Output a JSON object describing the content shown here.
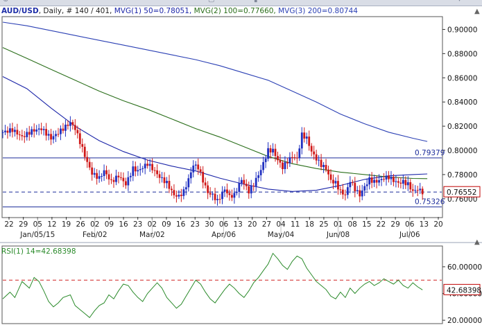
{
  "chart_data": [
    {
      "type": "candlestick",
      "symbol": "AUD/USD",
      "timeframe": "Daily",
      "bar_info": "# 140 / 401",
      "header": {
        "symbol_text": "AUD/USD",
        "rest_text": ", Daily, # 140 / 401,",
        "mvg1_text": "MVG(1) 50=0.78051,",
        "mvg2_text": "MVG(2) 100=0.77660,",
        "mvg3_text": "MVG(3) 200=0.80744"
      },
      "ylim": [
        0.745,
        0.91
      ],
      "y_ticks": [
        "0.90000",
        "0.88000",
        "0.86000",
        "0.84000",
        "0.82000",
        "0.80000",
        "0.78000",
        "0.76000"
      ],
      "y_tick_values": [
        0.9,
        0.88,
        0.86,
        0.84,
        0.82,
        0.8,
        0.78,
        0.76
      ],
      "x_day_labels": [
        "22",
        "29",
        "05",
        "12",
        "19",
        "26",
        "02",
        "09",
        "16",
        "23",
        "02",
        "09",
        "16",
        "23",
        "30",
        "06",
        "13",
        "20",
        "27",
        "04",
        "11",
        "18",
        "25",
        "01",
        "08",
        "15",
        "22",
        "29",
        "06",
        "13",
        "20"
      ],
      "x_month_labels": [
        "Jan/05/15",
        "Feb/02",
        "Mar/02",
        "Apr/06",
        "May/04",
        "Jun/08",
        "Jul/06"
      ],
      "horizontal_levels": [
        {
          "value": 0.79379,
          "label": "0.79379",
          "style": "solid",
          "color": "#1a2a9a"
        },
        {
          "value": 0.75326,
          "label": "0.75326",
          "style": "solid",
          "color": "#1a2a9a"
        },
        {
          "value": 0.76552,
          "label": "0.76552",
          "style": "dashed",
          "color": "#1a2a9a",
          "current_price": true
        }
      ],
      "moving_averages": [
        {
          "name": "MVG(1) 50",
          "value": 0.78051,
          "color": "#1a24a8",
          "points": [
            [
              0,
              0.861
            ],
            [
              10,
              0.851
            ],
            [
              20,
              0.835
            ],
            [
              30,
              0.82
            ],
            [
              40,
              0.808
            ],
            [
              50,
              0.799
            ],
            [
              60,
              0.792
            ],
            [
              70,
              0.787
            ],
            [
              80,
              0.783
            ],
            [
              90,
              0.777
            ],
            [
              100,
              0.772
            ],
            [
              110,
              0.768
            ],
            [
              120,
              0.766
            ],
            [
              130,
              0.767
            ],
            [
              140,
              0.771
            ],
            [
              150,
              0.776
            ],
            [
              160,
              0.779
            ],
            [
              170,
              0.78
            ],
            [
              176,
              0.7805
            ]
          ]
        },
        {
          "name": "MVG(2) 100",
          "value": 0.7766,
          "color": "#2a6e1a",
          "points": [
            [
              0,
              0.885
            ],
            [
              10,
              0.876
            ],
            [
              20,
              0.867
            ],
            [
              30,
              0.858
            ],
            [
              40,
              0.849
            ],
            [
              50,
              0.841
            ],
            [
              60,
              0.834
            ],
            [
              70,
              0.826
            ],
            [
              80,
              0.818
            ],
            [
              90,
              0.811
            ],
            [
              100,
              0.803
            ],
            [
              110,
              0.795
            ],
            [
              120,
              0.789
            ],
            [
              130,
              0.785
            ],
            [
              140,
              0.782
            ],
            [
              150,
              0.78
            ],
            [
              160,
              0.778
            ],
            [
              170,
              0.7768
            ],
            [
              176,
              0.7766
            ]
          ]
        },
        {
          "name": "MVG(3) 200",
          "value": 0.80744,
          "color": "#2a3fb4",
          "points": [
            [
              0,
              0.906
            ],
            [
              10,
              0.903
            ],
            [
              20,
              0.899
            ],
            [
              30,
              0.895
            ],
            [
              40,
              0.891
            ],
            [
              50,
              0.887
            ],
            [
              60,
              0.883
            ],
            [
              70,
              0.879
            ],
            [
              80,
              0.875
            ],
            [
              90,
              0.87
            ],
            [
              100,
              0.864
            ],
            [
              110,
              0.858
            ],
            [
              120,
              0.849
            ],
            [
              130,
              0.84
            ],
            [
              140,
              0.83
            ],
            [
              150,
              0.822
            ],
            [
              160,
              0.815
            ],
            [
              170,
              0.81
            ],
            [
              176,
              0.8074
            ]
          ]
        }
      ],
      "close_path": [
        [
          0,
          0.815
        ],
        [
          4,
          0.817
        ],
        [
          8,
          0.811
        ],
        [
          12,
          0.816
        ],
        [
          16,
          0.818
        ],
        [
          20,
          0.81
        ],
        [
          22,
          0.813
        ],
        [
          25,
          0.818
        ],
        [
          28,
          0.823
        ],
        [
          30,
          0.818
        ],
        [
          32,
          0.807
        ],
        [
          35,
          0.79
        ],
        [
          37,
          0.781
        ],
        [
          40,
          0.777
        ],
        [
          42,
          0.783
        ],
        [
          45,
          0.774
        ],
        [
          48,
          0.779
        ],
        [
          51,
          0.772
        ],
        [
          54,
          0.785
        ],
        [
          56,
          0.783
        ],
        [
          60,
          0.789
        ],
        [
          62,
          0.785
        ],
        [
          65,
          0.778
        ],
        [
          68,
          0.773
        ],
        [
          71,
          0.763
        ],
        [
          73,
          0.762
        ],
        [
          75,
          0.766
        ],
        [
          77,
          0.776
        ],
        [
          79,
          0.788
        ],
        [
          81,
          0.786
        ],
        [
          83,
          0.775
        ],
        [
          85,
          0.765
        ],
        [
          87,
          0.763
        ],
        [
          89,
          0.758
        ],
        [
          92,
          0.768
        ],
        [
          94,
          0.762
        ],
        [
          96,
          0.763
        ],
        [
          99,
          0.776
        ],
        [
          102,
          0.766
        ],
        [
          104,
          0.772
        ],
        [
          107,
          0.784
        ],
        [
          110,
          0.8
        ],
        [
          112,
          0.8
        ],
        [
          114,
          0.792
        ],
        [
          116,
          0.786
        ],
        [
          118,
          0.791
        ],
        [
          120,
          0.795
        ],
        [
          122,
          0.793
        ],
        [
          124,
          0.813
        ],
        [
          126,
          0.81
        ],
        [
          128,
          0.799
        ],
        [
          130,
          0.793
        ],
        [
          132,
          0.788
        ],
        [
          134,
          0.785
        ],
        [
          136,
          0.775
        ],
        [
          138,
          0.773
        ],
        [
          140,
          0.766
        ],
        [
          142,
          0.763
        ],
        [
          144,
          0.775
        ],
        [
          146,
          0.768
        ],
        [
          148,
          0.763
        ],
        [
          150,
          0.77
        ],
        [
          152,
          0.776
        ],
        [
          154,
          0.774
        ],
        [
          156,
          0.775
        ],
        [
          158,
          0.777
        ],
        [
          160,
          0.778
        ],
        [
          162,
          0.775
        ],
        [
          164,
          0.773
        ],
        [
          166,
          0.774
        ],
        [
          168,
          0.772
        ],
        [
          170,
          0.766
        ],
        [
          172,
          0.768
        ],
        [
          174,
          0.7655
        ]
      ],
      "range_x": [
        0,
        182
      ]
    },
    {
      "type": "line",
      "indicator": "RSI(1) 14",
      "header_text": "RSI(1) 14=42.68398",
      "current_value": 42.68398,
      "current_label": "42.68398",
      "ylim": [
        18,
        75
      ],
      "y_ticks": [
        "60.00000",
        "40.00000",
        "20.00000"
      ],
      "y_tick_values": [
        60,
        40,
        20
      ],
      "reference_level": 50,
      "line_color": "#2a8a2a",
      "rsi_path": [
        [
          0,
          36
        ],
        [
          3,
          41
        ],
        [
          5,
          37
        ],
        [
          8,
          49
        ],
        [
          11,
          44
        ],
        [
          13,
          52
        ],
        [
          15,
          49
        ],
        [
          17,
          42
        ],
        [
          19,
          34
        ],
        [
          21,
          30
        ],
        [
          23,
          33
        ],
        [
          25,
          37
        ],
        [
          28,
          39
        ],
        [
          30,
          31
        ],
        [
          32,
          28
        ],
        [
          34,
          25
        ],
        [
          36,
          22
        ],
        [
          38,
          27
        ],
        [
          40,
          31
        ],
        [
          42,
          33
        ],
        [
          44,
          39
        ],
        [
          46,
          36
        ],
        [
          48,
          42
        ],
        [
          50,
          47
        ],
        [
          52,
          46
        ],
        [
          54,
          41
        ],
        [
          56,
          37
        ],
        [
          58,
          34
        ],
        [
          60,
          40
        ],
        [
          62,
          44
        ],
        [
          64,
          48
        ],
        [
          66,
          44
        ],
        [
          68,
          37
        ],
        [
          70,
          33
        ],
        [
          72,
          29
        ],
        [
          74,
          32
        ],
        [
          76,
          38
        ],
        [
          78,
          44
        ],
        [
          80,
          50
        ],
        [
          82,
          47
        ],
        [
          84,
          41
        ],
        [
          86,
          36
        ],
        [
          88,
          33
        ],
        [
          90,
          38
        ],
        [
          92,
          43
        ],
        [
          94,
          47
        ],
        [
          96,
          44
        ],
        [
          98,
          40
        ],
        [
          100,
          37
        ],
        [
          102,
          42
        ],
        [
          104,
          48
        ],
        [
          106,
          52
        ],
        [
          108,
          57
        ],
        [
          110,
          62
        ],
        [
          112,
          70
        ],
        [
          114,
          66
        ],
        [
          116,
          61
        ],
        [
          118,
          58
        ],
        [
          120,
          64
        ],
        [
          122,
          68
        ],
        [
          124,
          66
        ],
        [
          126,
          59
        ],
        [
          128,
          54
        ],
        [
          130,
          49
        ],
        [
          132,
          46
        ],
        [
          134,
          43
        ],
        [
          136,
          38
        ],
        [
          138,
          36
        ],
        [
          140,
          41
        ],
        [
          142,
          37
        ],
        [
          144,
          44
        ],
        [
          146,
          40
        ],
        [
          148,
          44
        ],
        [
          150,
          47
        ],
        [
          152,
          49
        ],
        [
          154,
          46
        ],
        [
          156,
          48
        ],
        [
          158,
          51
        ],
        [
          160,
          49
        ],
        [
          162,
          47
        ],
        [
          164,
          50
        ],
        [
          166,
          46
        ],
        [
          168,
          44
        ],
        [
          170,
          48
        ],
        [
          172,
          45
        ],
        [
          174,
          42.7
        ]
      ],
      "range_x": [
        0,
        182
      ]
    }
  ]
}
